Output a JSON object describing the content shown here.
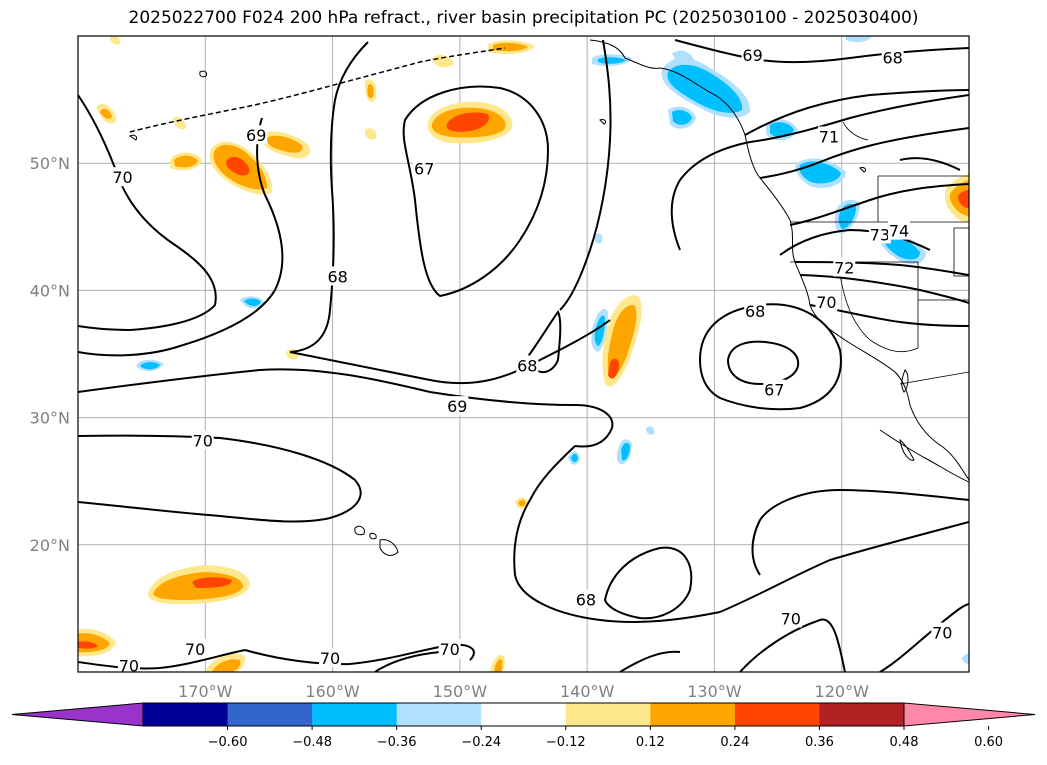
{
  "title": "2025022700 F024 200 hPa refract., river basin precipitation PC (2025030100 - 2025030400)",
  "lat_ticks": [
    {
      "label": "50°N",
      "lat": 50
    },
    {
      "label": "40°N",
      "lat": 40
    },
    {
      "label": "30°N",
      "lat": 30
    },
    {
      "label": "20°N",
      "lat": 20
    }
  ],
  "lon_ticks": [
    {
      "label": "170°W",
      "lon": -170
    },
    {
      "label": "160°W",
      "lon": -160
    },
    {
      "label": "150°W",
      "lon": -150
    },
    {
      "label": "140°W",
      "lon": -140
    },
    {
      "label": "130°W",
      "lon": -130
    },
    {
      "label": "120°W",
      "lon": -120
    }
  ],
  "map_extent": {
    "lon_min": -180,
    "lon_max": -110,
    "lat_min": 10,
    "lat_max": 60
  },
  "contour_labels": [
    {
      "text": "69",
      "lon": -127,
      "lat": 58.5
    },
    {
      "text": "68",
      "lon": -116,
      "lat": 58.3
    },
    {
      "text": "69",
      "lon": -166,
      "lat": 52.2
    },
    {
      "text": "70",
      "lon": -176.5,
      "lat": 48.9
    },
    {
      "text": "67",
      "lon": -152.8,
      "lat": 49.6
    },
    {
      "text": "71",
      "lon": -121,
      "lat": 52.1
    },
    {
      "text": "68",
      "lon": -159.6,
      "lat": 41.1
    },
    {
      "text": "73",
      "lon": -117,
      "lat": 44.4
    },
    {
      "text": "74",
      "lon": -115.5,
      "lat": 44.7
    },
    {
      "text": "72",
      "lon": -119.8,
      "lat": 41.8
    },
    {
      "text": "70",
      "lon": -121.2,
      "lat": 39.1
    },
    {
      "text": "68",
      "lon": -126.8,
      "lat": 38.4
    },
    {
      "text": "68",
      "lon": -144.7,
      "lat": 34.1
    },
    {
      "text": "67",
      "lon": -125.3,
      "lat": 32.2
    },
    {
      "text": "69",
      "lon": -150.2,
      "lat": 30.9
    },
    {
      "text": "70",
      "lon": -170.2,
      "lat": 28.2
    },
    {
      "text": "68",
      "lon": -140.1,
      "lat": 15.7
    },
    {
      "text": "70",
      "lon": -124,
      "lat": 14.2
    },
    {
      "text": "70",
      "lon": -112.1,
      "lat": 13.1
    },
    {
      "text": "70",
      "lon": -170.8,
      "lat": 11.8
    },
    {
      "text": "70",
      "lon": -150.8,
      "lat": 11.8
    },
    {
      "text": "70",
      "lon": -160.2,
      "lat": 11.1
    },
    {
      "text": "70",
      "lon": -176,
      "lat": 10.5
    }
  ],
  "colorbar": {
    "colors": [
      "#9933cc",
      "#000099",
      "#3366cc",
      "#00bfff",
      "#b0e0ff",
      "#ffffff",
      "#ffe88c",
      "#ffa500",
      "#ff4500",
      "#b22222",
      "#ff88aa"
    ],
    "tick_labels": [
      "−0.60",
      "−0.48",
      "−0.36",
      "−0.24",
      "−0.12",
      "0.12",
      "0.24",
      "0.36",
      "0.48",
      "0.60"
    ]
  }
}
